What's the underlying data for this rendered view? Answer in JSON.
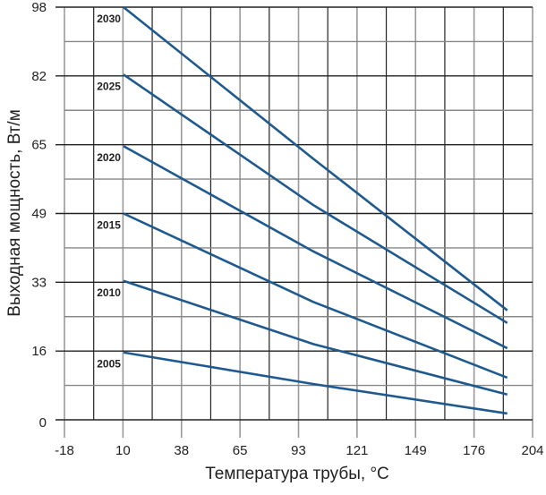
{
  "chart_data": {
    "type": "line",
    "title": "",
    "xlabel": "Температура трубы, °C",
    "ylabel": "Выходная мощность, Вт/м",
    "xlim": [
      -18,
      204
    ],
    "ylim": [
      0,
      98
    ],
    "x_ticks": [
      "-18",
      "10",
      "38",
      "65",
      "93",
      "121",
      "149",
      "176",
      "204"
    ],
    "y_ticks": [
      "0",
      "16",
      "33",
      "49",
      "65",
      "82",
      "98"
    ],
    "grid": true,
    "line_color": "#1f5a8f",
    "series": [
      {
        "name": "2030",
        "x": [
          10,
          100,
          192
        ],
        "y": [
          98,
          62,
          26
        ]
      },
      {
        "name": "2025",
        "x": [
          10,
          100,
          192
        ],
        "y": [
          82,
          51,
          23
        ]
      },
      {
        "name": "2020",
        "x": [
          10,
          100,
          192
        ],
        "y": [
          65,
          40,
          17
        ]
      },
      {
        "name": "2015",
        "x": [
          10,
          100,
          192
        ],
        "y": [
          49,
          28,
          10
        ]
      },
      {
        "name": "2010",
        "x": [
          10,
          100,
          192
        ],
        "y": [
          33,
          18,
          6
        ]
      },
      {
        "name": "2005",
        "x": [
          10,
          100,
          192
        ],
        "y": [
          16,
          8.5,
          1.5
        ]
      }
    ]
  }
}
